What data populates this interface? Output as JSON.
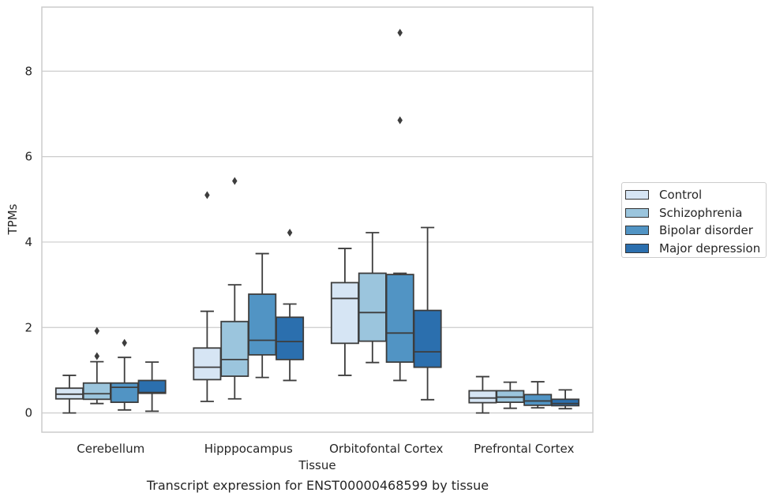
{
  "caption": "Transcript expression for ENST00000468599 by tissue",
  "chart_data": {
    "type": "box",
    "xlabel": "Tissue",
    "ylabel": "TPMs",
    "ylim": [
      -0.45,
      9.5
    ],
    "yticks": [
      0,
      2,
      4,
      6,
      8
    ],
    "grid": "horizontal",
    "legend_position": "center-right",
    "categories": [
      "Cerebellum",
      "Hipppocampus",
      "Orbitofontal Cortex",
      "Prefrontal Cortex"
    ],
    "series": [
      {
        "name": "Control",
        "color": "#d6e5f4",
        "boxes": [
          {
            "whislo": 0.0,
            "q1": 0.33,
            "med": 0.44,
            "q3": 0.58,
            "whishi": 0.88,
            "fliers": []
          },
          {
            "whislo": 0.27,
            "q1": 0.78,
            "med": 1.07,
            "q3": 1.52,
            "whishi": 2.38,
            "fliers": [
              5.1
            ]
          },
          {
            "whislo": 0.88,
            "q1": 1.63,
            "med": 2.68,
            "q3": 3.05,
            "whishi": 3.85,
            "fliers": []
          },
          {
            "whislo": 0.0,
            "q1": 0.24,
            "med": 0.35,
            "q3": 0.52,
            "whishi": 0.85,
            "fliers": []
          }
        ]
      },
      {
        "name": "Schizophrenia",
        "color": "#9bc5dd",
        "boxes": [
          {
            "whislo": 0.22,
            "q1": 0.32,
            "med": 0.45,
            "q3": 0.7,
            "whishi": 1.2,
            "fliers": [
              1.33,
              1.92
            ]
          },
          {
            "whislo": 0.33,
            "q1": 0.86,
            "med": 1.25,
            "q3": 2.14,
            "whishi": 3.0,
            "fliers": [
              5.43
            ]
          },
          {
            "whislo": 1.18,
            "q1": 1.68,
            "med": 2.35,
            "q3": 3.27,
            "whishi": 4.22,
            "fliers": []
          },
          {
            "whislo": 0.11,
            "q1": 0.25,
            "med": 0.37,
            "q3": 0.52,
            "whishi": 0.72,
            "fliers": []
          }
        ]
      },
      {
        "name": "Bipolar disorder",
        "color": "#5194c4",
        "boxes": [
          {
            "whislo": 0.07,
            "q1": 0.25,
            "med": 0.6,
            "q3": 0.7,
            "whishi": 1.3,
            "fliers": [
              1.64
            ]
          },
          {
            "whislo": 0.83,
            "q1": 1.36,
            "med": 1.7,
            "q3": 2.78,
            "whishi": 3.73,
            "fliers": []
          },
          {
            "whislo": 0.76,
            "q1": 1.19,
            "med": 1.87,
            "q3": 3.24,
            "whishi": 3.27,
            "fliers": [
              6.85,
              8.9
            ]
          },
          {
            "whislo": 0.12,
            "q1": 0.18,
            "med": 0.28,
            "q3": 0.43,
            "whishi": 0.73,
            "fliers": []
          }
        ]
      },
      {
        "name": "Major depression",
        "color": "#2b6fae",
        "boxes": [
          {
            "whislo": 0.04,
            "q1": 0.46,
            "med": 0.48,
            "q3": 0.76,
            "whishi": 1.19,
            "fliers": []
          },
          {
            "whislo": 0.76,
            "q1": 1.25,
            "med": 1.67,
            "q3": 2.24,
            "whishi": 2.55,
            "fliers": [
              4.22
            ]
          },
          {
            "whislo": 0.31,
            "q1": 1.07,
            "med": 1.43,
            "q3": 2.4,
            "whishi": 4.34,
            "fliers": []
          },
          {
            "whislo": 0.1,
            "q1": 0.17,
            "med": 0.22,
            "q3": 0.32,
            "whishi": 0.54,
            "fliers": []
          }
        ]
      }
    ]
  }
}
